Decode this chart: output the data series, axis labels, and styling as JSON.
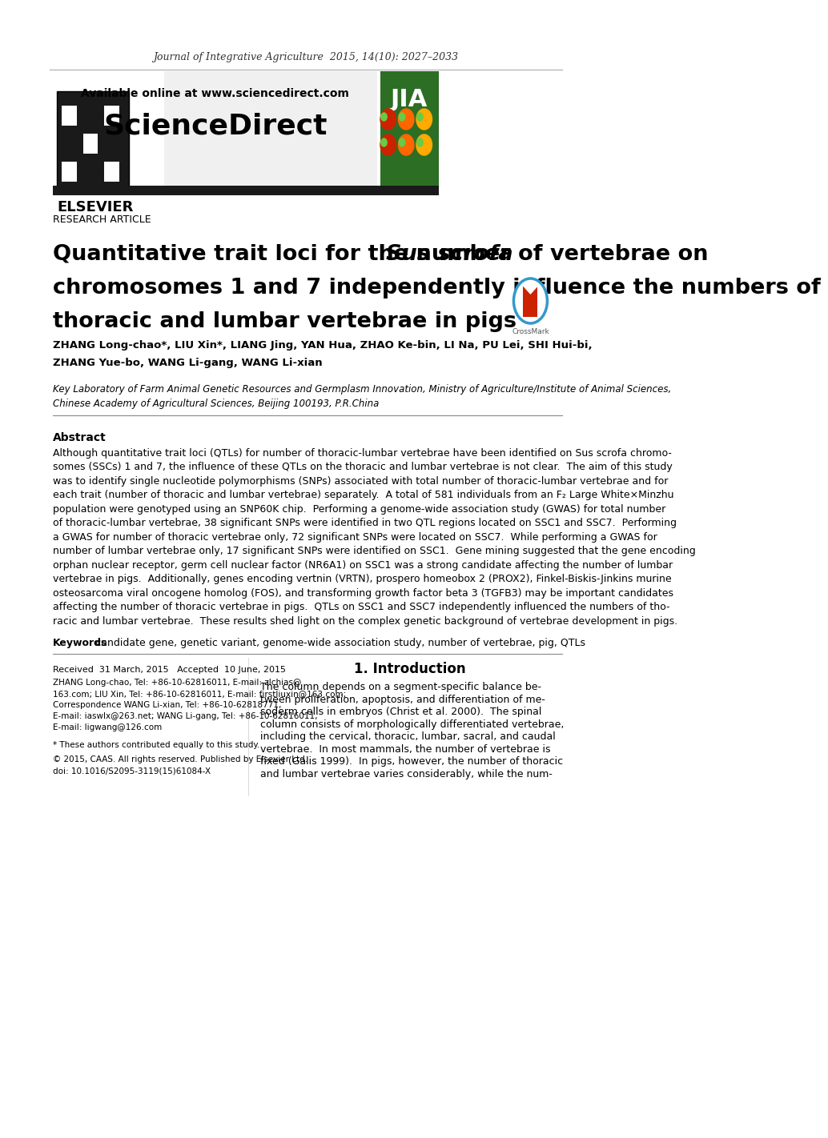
{
  "journal_line": "Journal of Integrative Agriculture  2015, 14(10): 2027–2033",
  "available_online": "Available online at www.sciencedirect.com",
  "sciencedirect_title": "ScienceDirect",
  "research_article_label": "RESEARCH ARTICLE",
  "title_normal": "Quantitative trait loci for the number of vertebrae on ",
  "title_italic": "Sus scrofa",
  "title_normal2": "\nchromosomes 1 and 7 independently influence the numbers of\nthoracic and lumbar vertebrae in pigs",
  "authors_line1": "ZHANG Long-chao*, LIU Xin*, LIANG Jing, YAN Hua, ZHAO Ke-bin, LI Na, PU Lei, SHI Hui-bi,",
  "authors_line2": "ZHANG Yue-bo, WANG Li-gang, WANG Li-xian",
  "affiliation": "Key Laboratory of Farm Animal Genetic Resources and Germplasm Innovation, Ministry of Agriculture/Institute of Animal Sciences,\nChinese Academy of Agricultural Sciences, Beijing 100193, P.R.China",
  "abstract_title": "Abstract",
  "abstract_text": "Although quantitative trait loci (QTLs) for number of thoracic-lumbar vertebrae have been identified on Sus scrofa chromosomes (SSCs) 1 and 7, the influence of these QTLs on the thoracic and lumbar vertebrae is not clear.  The aim of this study was to identify single nucleotide polymorphisms (SNPs) associated with total number of thoracic-lumbar vertebrae and for each trait (number of thoracic and lumbar vertebrae) separately.  A total of 581 individuals from an F₂ Large White×Minzhu population were genotyped using an SNP60K chip.  Performing a genome-wide association study (GWAS) for total number of thoracic-lumbar vertebrae, 38 significant SNPs were identified in two QTL regions located on SSC1 and SSC7.  Performing a GWAS for number of thoracic vertebrae only, 72 significant SNPs were located on SSC7.  While performing a GWAS for number of lumbar vertebrae only, 17 significant SNPs were identified on SSC1.  Gene mining suggested that the gene encoding orphan nuclear receptor, germ cell nuclear factor (NR6A1) on SSC1 was a strong candidate affecting the number of lumbar vertebrae in pigs.  Additionally, genes encoding vertnin (VRTN), prospero homeobox 2 (PROX2), Finkel-Biskis-Jinkins murine osteosarcoma viral oncogene homolog (FOS), and transforming growth factor beta 3 (TGFB3) may be important candidates affecting the number of thoracic vertebrae in pigs.  QTLs on SSC1 and SSC7 independently influenced the numbers of thoracic and lumbar vertebrae.  These results shed light on the complex genetic background of vertebrae development in pigs.",
  "keywords_bold": "Keywords",
  "keywords_text": ": candidate gene, genetic variant, genome-wide association study, number of vertebrae, pig, QTLs",
  "section_title": "1. Introduction",
  "intro_text": "The column depends on a segment-specific balance between proliferation, apoptosis, and differentiation of mesoderm cells in embryos (Christ et al. 2000).  The spinal column consists of morphologically differentiated vertebrae, including the cervical, thoracic, lumbar, sacral, and caudal vertebrae.  In most mammals, the number of vertebrae is fixed (Galis 1999).  In pigs, however, the number of thoracic and lumbar vertebrae varies considerably, while the num-",
  "received_date": "Received  31 March, 2015   Accepted  10 June, 2015",
  "contact_info": "ZHANG Long-chao, Tel: +86-10-62816011, E-mail: zlchias@163.com; LIU Xin, Tel: +86-10-62816011, E-mail: firstliuxin@163.com; Correspondence WANG Li-xian, Tel: +86-10-62818771, E-mail: iaswlx@263.net; WANG Li-gang, Tel: +86-10-62816011, E-mail: ligwang@126.com",
  "footnote": "* These authors contributed equally to this study.",
  "copyright": "© 2015, CAAS. All rights reserved. Published by Elsevier Ltd.\ndoi: 10.1016/S2095-3119(15)61084-X",
  "bg_color": "#ffffff",
  "header_bg": "#f0f0f0",
  "dark_bar_color": "#1a1a1a",
  "green_color": "#2d7a27",
  "text_color": "#000000",
  "gray_color": "#555555"
}
